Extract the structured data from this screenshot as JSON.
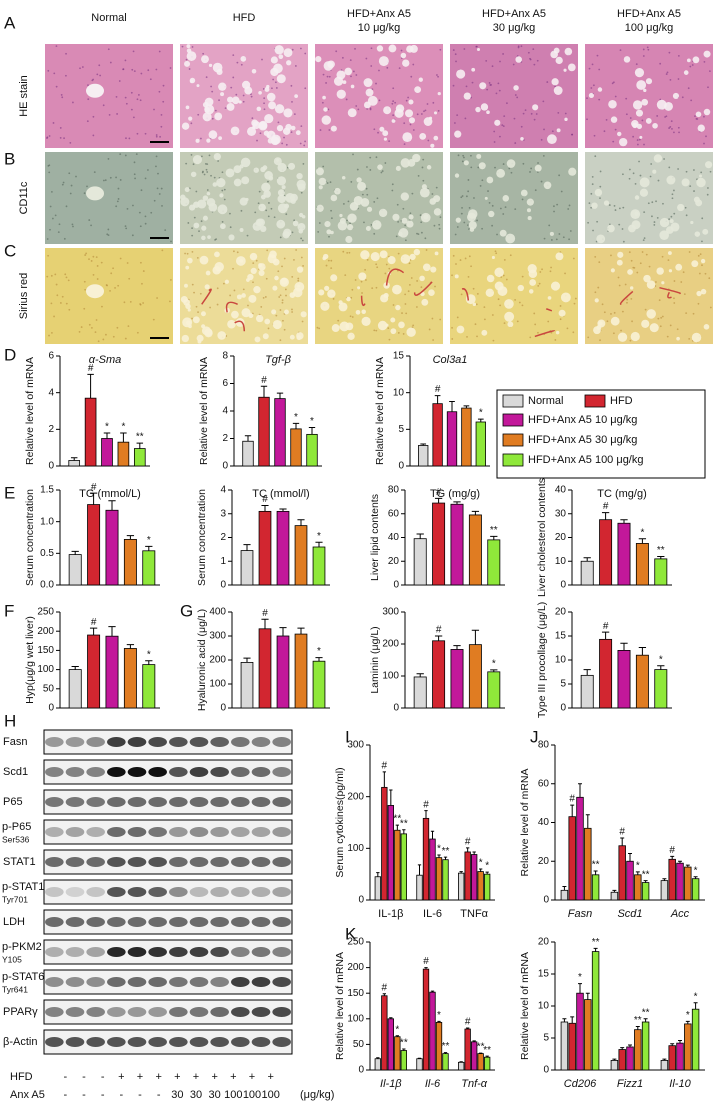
{
  "panel_letters": [
    "A",
    "B",
    "C",
    "D",
    "E",
    "F",
    "G",
    "H",
    "I",
    "J",
    "K"
  ],
  "histology": {
    "columns": [
      [
        "Normal"
      ],
      [
        "HFD"
      ],
      [
        "HFD+Anx A5",
        "10 μg/kg"
      ],
      [
        "HFD+Anx A5",
        "30 μg/kg"
      ],
      [
        "HFD+Anx A5",
        "100 μg/kg"
      ]
    ],
    "rows": [
      "HE stain",
      "CD11c",
      "Sirius red"
    ]
  },
  "legend": [
    {
      "name": "Normal",
      "color": "#d9d9d9"
    },
    {
      "name": "HFD",
      "color": "#d22630"
    },
    {
      "name": "HFD+Anx A5 10 μg/kg",
      "color": "#c2189a"
    },
    {
      "name": "HFD+Anx A5 30 μg/kg",
      "color": "#e07c22"
    },
    {
      "name": "HFD+Anx A5 100 μg/kg",
      "color": "#8fe83a"
    }
  ],
  "chart_data": [
    {
      "type": "bar",
      "title": "α-Sma",
      "italic_title": true,
      "ylabel": "Relative level of mRNA",
      "ylim": [
        0,
        6
      ],
      "yticks": [
        0,
        2,
        4,
        6
      ],
      "values": [
        0.3,
        3.7,
        1.5,
        1.3,
        0.95
      ],
      "errors": [
        0.15,
        1.3,
        0.3,
        0.5,
        0.3
      ],
      "annotations": [
        null,
        "#",
        "*",
        "*",
        "**"
      ]
    },
    {
      "type": "bar",
      "title": "Tgf-β",
      "italic_title": true,
      "ylabel": "Relative level of mRNA",
      "ylim": [
        0,
        8
      ],
      "yticks": [
        0,
        2,
        4,
        6,
        8
      ],
      "values": [
        1.8,
        5.0,
        4.9,
        2.7,
        2.3
      ],
      "errors": [
        0.4,
        0.8,
        0.4,
        0.4,
        0.5
      ],
      "annotations": [
        null,
        "#",
        null,
        "*",
        "*"
      ]
    },
    {
      "type": "bar",
      "title": "Col3a1",
      "italic_title": true,
      "ylabel": "Relative level of mRNA",
      "ylim": [
        0,
        15
      ],
      "yticks": [
        0,
        5,
        10,
        15
      ],
      "values": [
        2.8,
        8.5,
        7.4,
        7.9,
        6.0
      ],
      "errors": [
        0.2,
        1.1,
        1.4,
        0.3,
        0.4
      ],
      "annotations": [
        null,
        "#",
        null,
        null,
        "*"
      ]
    },
    {
      "type": "bar",
      "title": "TG (mmol/L)",
      "ylabel": "Serum concentration",
      "ylim": [
        0,
        1.5
      ],
      "yticks": [
        {
          "value": 0,
          "label": "0.0"
        },
        0.5,
        {
          "value": 1,
          "label": "1.0"
        },
        1.5
      ],
      "values": [
        0.48,
        1.27,
        1.18,
        0.72,
        0.54
      ],
      "errors": [
        0.05,
        0.18,
        0.15,
        0.06,
        0.07
      ],
      "annotations": [
        null,
        "#",
        null,
        null,
        "*"
      ]
    },
    {
      "type": "bar",
      "title": "TC (mmol/l)",
      "ylabel": "Serum concentration",
      "ylim": [
        0,
        4
      ],
      "yticks": [
        0,
        1,
        2,
        3,
        4
      ],
      "values": [
        1.45,
        3.1,
        3.1,
        2.5,
        1.6
      ],
      "errors": [
        0.25,
        0.25,
        0.1,
        0.25,
        0.2
      ],
      "annotations": [
        null,
        "#",
        null,
        null,
        "*"
      ]
    },
    {
      "type": "bar",
      "title": "TG (mg/g)",
      "ylabel": "Liver lipid contents",
      "ylim": [
        0,
        80
      ],
      "yticks": [
        0,
        20,
        40,
        60,
        80
      ],
      "values": [
        39,
        69,
        68,
        59,
        38
      ],
      "errors": [
        4,
        4,
        2,
        3,
        3
      ],
      "annotations": [
        null,
        "#",
        null,
        null,
        "**"
      ]
    },
    {
      "type": "bar",
      "title": "TC (mg/g)",
      "ylabel": "Liver cholesterol contents",
      "ylim": [
        0,
        40
      ],
      "yticks": [
        0,
        10,
        20,
        30,
        40
      ],
      "values": [
        10,
        27.5,
        26,
        17.5,
        11
      ],
      "errors": [
        1.5,
        3,
        1.5,
        2,
        1
      ],
      "annotations": [
        null,
        "#",
        null,
        "*",
        "**"
      ]
    },
    {
      "type": "bar",
      "ylabel": "Hyp(μg/g wet liver)",
      "ylim": [
        0,
        250
      ],
      "yticks": [
        0,
        50,
        100,
        150,
        200,
        250
      ],
      "values": [
        100,
        190,
        187,
        155,
        113
      ],
      "errors": [
        8,
        18,
        25,
        10,
        10
      ],
      "annotations": [
        null,
        "#",
        null,
        null,
        "*"
      ]
    },
    {
      "type": "bar",
      "ylabel": "Hyaluronic acid (μg/L)",
      "ylim": [
        0,
        400
      ],
      "yticks": [
        0,
        100,
        200,
        300,
        400
      ],
      "values": [
        190,
        330,
        300,
        308,
        195
      ],
      "errors": [
        18,
        40,
        35,
        25,
        15
      ],
      "annotations": [
        null,
        "#",
        null,
        null,
        "*"
      ]
    },
    {
      "type": "bar",
      "ylabel": "Laminin (μg/L)",
      "ylim": [
        0,
        300
      ],
      "yticks": [
        0,
        100,
        200,
        300
      ],
      "values": [
        97,
        210,
        183,
        198,
        113
      ],
      "errors": [
        10,
        15,
        12,
        45,
        6
      ],
      "annotations": [
        null,
        "#",
        null,
        null,
        "*"
      ]
    },
    {
      "type": "bar",
      "ylabel": "Type III procollage (μg/L)",
      "ylim": [
        0,
        20
      ],
      "yticks": [
        0,
        5,
        10,
        15,
        20
      ],
      "values": [
        6.8,
        14.3,
        12,
        11,
        8
      ],
      "errors": [
        1.2,
        1.5,
        1.5,
        1.6,
        0.8
      ],
      "annotations": [
        null,
        "#",
        null,
        null,
        "*"
      ]
    },
    {
      "type": "grouped_bar",
      "ylabel": "Serum cytokines(pg/ml)",
      "ylim": [
        0,
        300
      ],
      "yticks": [
        0,
        100,
        200,
        300
      ],
      "categories": [
        "IL-1β",
        "IL-6",
        "TNFα"
      ],
      "series": [
        {
          "values": [
            45,
            48,
            52
          ],
          "errors": [
            8,
            20,
            3
          ],
          "annotations": [
            null,
            null,
            null
          ]
        },
        {
          "values": [
            218,
            158,
            93
          ],
          "errors": [
            30,
            15,
            8
          ],
          "annotations": [
            "#",
            "#",
            "#"
          ]
        },
        {
          "values": [
            183,
            118,
            88
          ],
          "errors": [
            30,
            15,
            5
          ],
          "annotations": [
            null,
            null,
            null
          ]
        },
        {
          "values": [
            135,
            82,
            55
          ],
          "errors": [
            10,
            5,
            5
          ],
          "annotations": [
            "**",
            "*",
            "*"
          ]
        },
        {
          "values": [
            128,
            78,
            50
          ],
          "errors": [
            8,
            5,
            4
          ],
          "annotations": [
            "**",
            "**",
            "*"
          ]
        }
      ]
    },
    {
      "type": "grouped_bar",
      "ylabel": "Relative level of mRNA",
      "ylim": [
        0,
        80
      ],
      "yticks": [
        0,
        20,
        40,
        60,
        80
      ],
      "categories": [
        "Fasn",
        "Scd1",
        "Acc"
      ],
      "italic_categories": true,
      "series": [
        {
          "values": [
            5,
            4,
            10
          ],
          "errors": [
            2,
            1,
            1
          ],
          "annotations": [
            null,
            null,
            null
          ]
        },
        {
          "values": [
            43,
            28,
            21
          ],
          "errors": [
            6,
            4,
            1.5
          ],
          "annotations": [
            "#",
            "#",
            "#"
          ]
        },
        {
          "values": [
            53,
            20,
            19
          ],
          "errors": [
            7,
            4,
            1
          ],
          "annotations": [
            null,
            null,
            null
          ]
        },
        {
          "values": [
            37,
            13,
            17
          ],
          "errors": [
            7,
            1.5,
            1
          ],
          "annotations": [
            null,
            "*",
            null
          ]
        },
        {
          "values": [
            13,
            9,
            11
          ],
          "errors": [
            2,
            1,
            1
          ],
          "annotations": [
            "**",
            "**",
            "*"
          ]
        }
      ]
    },
    {
      "type": "grouped_bar",
      "ylabel": "Relative level of mRNA",
      "ylim": [
        0,
        250
      ],
      "yticks": [
        0,
        50,
        100,
        150,
        200,
        250
      ],
      "categories": [
        "Il-1β",
        "Il-6",
        "Tnf-α"
      ],
      "italic_categories": true,
      "series": [
        {
          "values": [
            22,
            22,
            15
          ],
          "errors": [
            2,
            1,
            1
          ],
          "annotations": [
            null,
            null,
            null
          ]
        },
        {
          "values": [
            145,
            197,
            80
          ],
          "errors": [
            4,
            3,
            2
          ],
          "annotations": [
            "#",
            "#",
            "#"
          ]
        },
        {
          "values": [
            100,
            152,
            55
          ],
          "errors": [
            2,
            2,
            2
          ],
          "annotations": [
            null,
            null,
            null
          ]
        },
        {
          "values": [
            65,
            93,
            32
          ],
          "errors": [
            2,
            2,
            1
          ],
          "annotations": [
            "*",
            "*",
            "**"
          ]
        },
        {
          "values": [
            38,
            32,
            25
          ],
          "errors": [
            3,
            2,
            2
          ],
          "annotations": [
            "**",
            "**",
            "**"
          ]
        }
      ]
    },
    {
      "type": "grouped_bar",
      "ylabel": "Relative level of mRNA",
      "ylim": [
        0,
        20
      ],
      "yticks": [
        0,
        5,
        10,
        15,
        20
      ],
      "categories": [
        "Cd206",
        "Fizz1",
        "Il-10"
      ],
      "italic_categories": true,
      "series": [
        {
          "values": [
            7.5,
            1.5,
            1.5
          ],
          "errors": [
            0.5,
            0.2,
            0.2
          ],
          "annotations": [
            null,
            null,
            null
          ]
        },
        {
          "values": [
            7.3,
            3.2,
            3.8
          ],
          "errors": [
            1,
            0.3,
            0.3
          ],
          "annotations": [
            null,
            null,
            null
          ]
        },
        {
          "values": [
            12,
            3.6,
            4.2
          ],
          "errors": [
            1.5,
            0.3,
            0.4
          ],
          "annotations": [
            "*",
            null,
            null
          ]
        },
        {
          "values": [
            11,
            6.3,
            7.2
          ],
          "errors": [
            1,
            0.5,
            0.4
          ],
          "annotations": [
            null,
            "**",
            "*"
          ]
        },
        {
          "values": [
            18.5,
            7.5,
            9.5
          ],
          "errors": [
            0.5,
            0.5,
            1
          ],
          "annotations": [
            "**",
            "**",
            "*"
          ]
        }
      ]
    }
  ],
  "western_blot": {
    "rows": [
      {
        "label": "Fasn"
      },
      {
        "label": "Scd1"
      },
      {
        "label": "P65"
      },
      {
        "label": "p-P65",
        "site": "Ser536"
      },
      {
        "label": "STAT1"
      },
      {
        "label": "p-STAT1",
        "site": "Tyr701"
      },
      {
        "label": "LDH"
      },
      {
        "label": "p-PKM2",
        "site": "Y105"
      },
      {
        "label": "p-STAT6",
        "site": "Tyr641"
      },
      {
        "label": "PPARγ"
      },
      {
        "label": "β-Actin"
      }
    ],
    "treatments": [
      {
        "label": "HFD",
        "lanes": [
          "-",
          "-",
          "-",
          "+",
          "+",
          "+",
          "+",
          "+",
          "+",
          "+",
          "+",
          "+"
        ]
      },
      {
        "label": "Anx A5",
        "lanes": [
          "-",
          "-",
          "-",
          "-",
          "-",
          "-",
          "30",
          "30",
          "30",
          "100",
          "100",
          "100"
        ],
        "unit": "(μg/kg)"
      }
    ]
  }
}
